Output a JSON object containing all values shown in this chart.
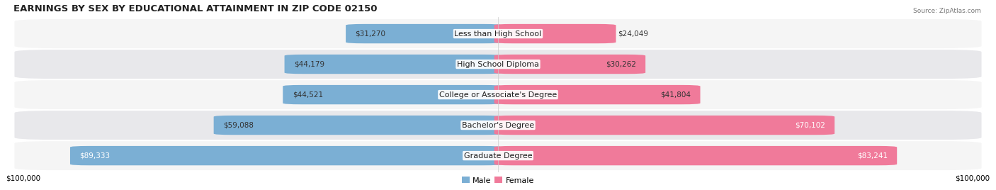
{
  "title": "EARNINGS BY SEX BY EDUCATIONAL ATTAINMENT IN ZIP CODE 02150",
  "source": "Source: ZipAtlas.com",
  "categories": [
    "Less than High School",
    "High School Diploma",
    "College or Associate's Degree",
    "Bachelor's Degree",
    "Graduate Degree"
  ],
  "male_values": [
    31270,
    44179,
    44521,
    59088,
    89333
  ],
  "female_values": [
    24049,
    30262,
    41804,
    70102,
    83241
  ],
  "male_color": "#7bafd4",
  "female_color": "#f07a9a",
  "row_bg_light": "#f5f5f5",
  "row_bg_dark": "#e8e8eb",
  "max_value": 100000,
  "xlabel_left": "$100,000",
  "xlabel_right": "$100,000",
  "bar_height": 0.62,
  "background_color": "#ffffff",
  "title_fontsize": 9.5,
  "label_fontsize": 8,
  "value_fontsize": 7.5,
  "legend_fontsize": 8
}
